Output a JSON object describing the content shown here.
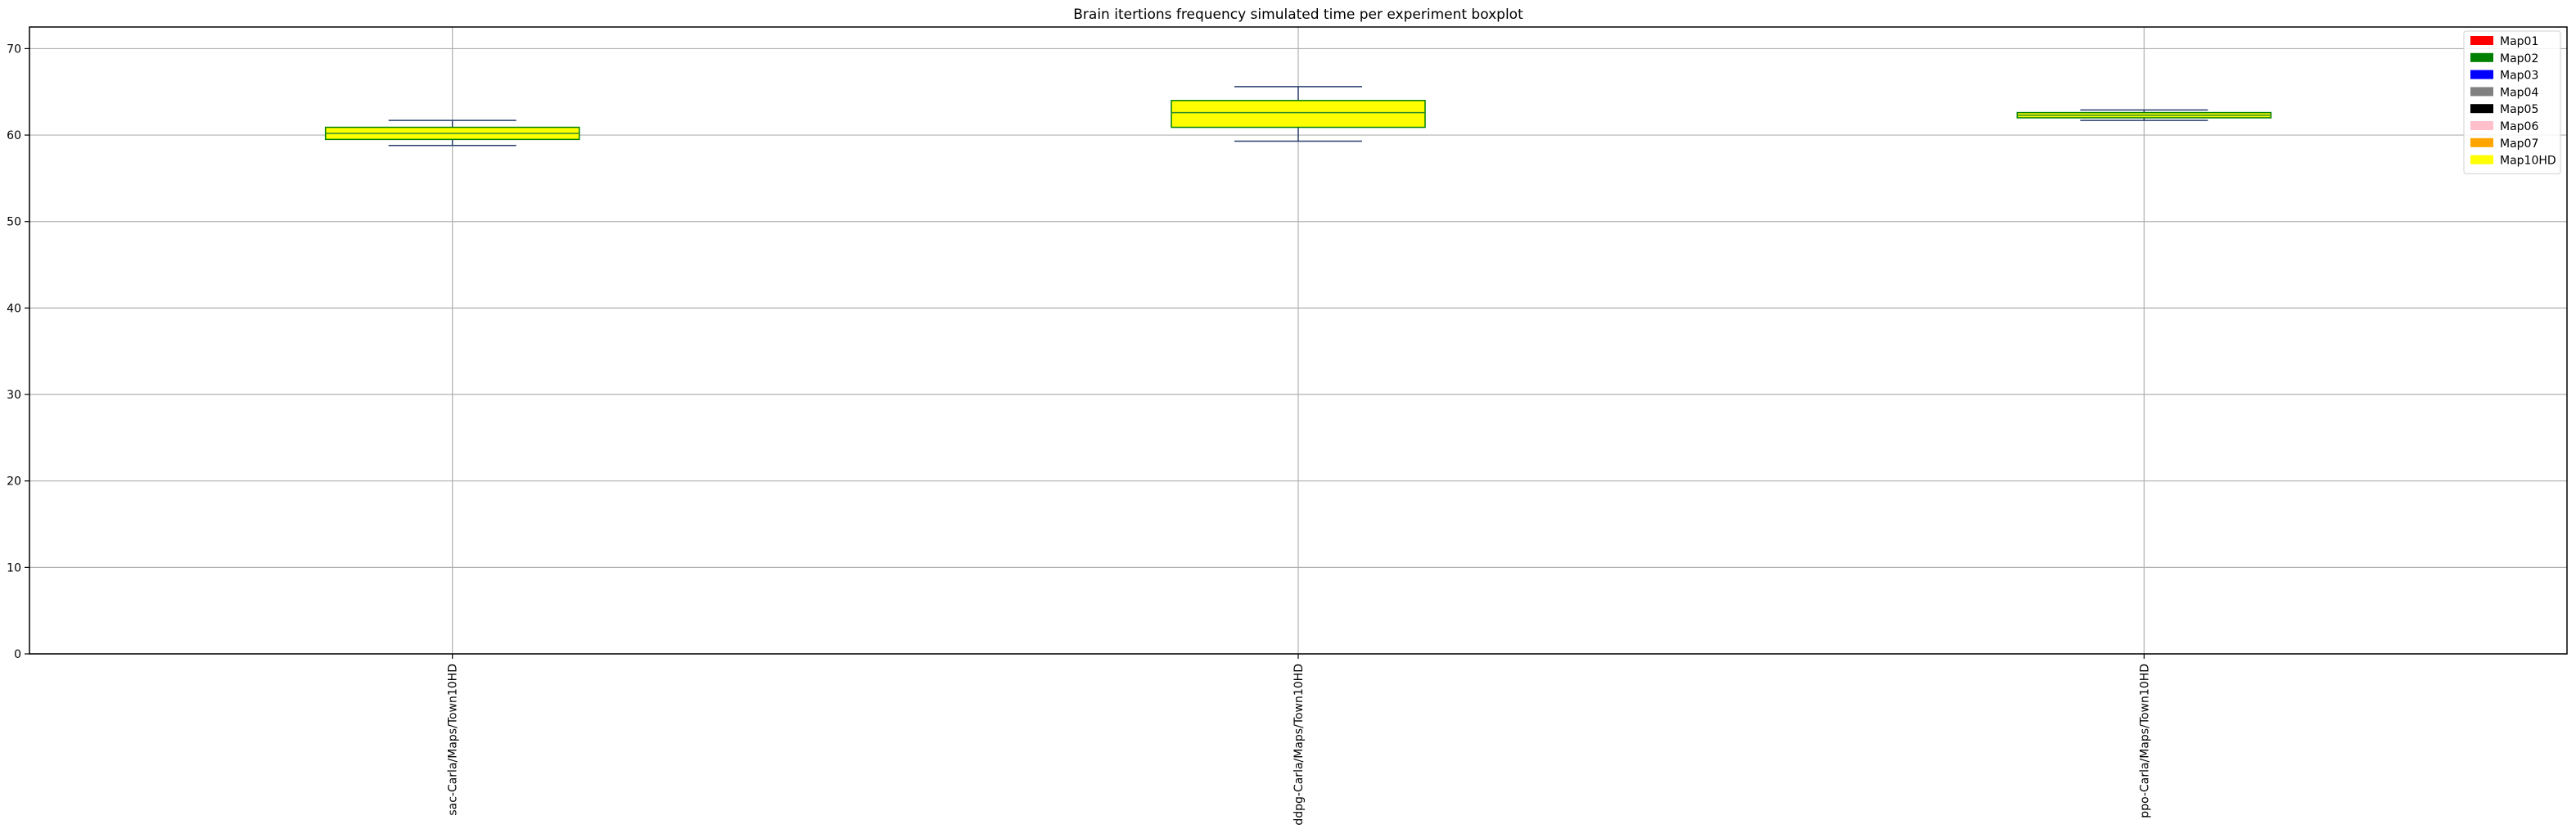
{
  "chart_data": {
    "type": "boxplot",
    "title": "Brain itertions frequency simulated time per experiment boxplot",
    "xlabel": "",
    "ylabel": "",
    "ylim": [
      0,
      72.5
    ],
    "yticks": [
      0,
      10,
      20,
      30,
      40,
      50,
      60,
      70
    ],
    "grid": true,
    "legend_position": "top-right",
    "categories": [
      "sac-Carla/Maps/Town10HD",
      "ddpg-Carla/Maps/Town10HD",
      "ppo-Carla/Maps/Town10HD"
    ],
    "boxes": [
      {
        "category": "sac-Carla/Maps/Town10HD",
        "whisker_low": 58.8,
        "q1": 59.5,
        "median": 60.2,
        "q3": 60.9,
        "whisker_high": 61.7,
        "fill": "#ffff00",
        "outline": "#008000"
      },
      {
        "category": "ddpg-Carla/Maps/Town10HD",
        "whisker_low": 59.3,
        "q1": 60.9,
        "median": 62.6,
        "q3": 64.0,
        "whisker_high": 65.6,
        "fill": "#ffff00",
        "outline": "#008000"
      },
      {
        "category": "ppo-Carla/Maps/Town10HD",
        "whisker_low": 61.7,
        "q1": 62.0,
        "median": 62.3,
        "q3": 62.6,
        "whisker_high": 62.9,
        "fill": "#ffff00",
        "outline": "#008000"
      }
    ],
    "legend": [
      {
        "label": "Map01",
        "color": "#ff0000"
      },
      {
        "label": "Map02",
        "color": "#008000"
      },
      {
        "label": "Map03",
        "color": "#0000ff"
      },
      {
        "label": "Map04",
        "color": "#808080"
      },
      {
        "label": "Map05",
        "color": "#000000"
      },
      {
        "label": "Map06",
        "color": "#ffc0cb"
      },
      {
        "label": "Map07",
        "color": "#ffa500"
      },
      {
        "label": "Map10HD",
        "color": "#ffff00"
      }
    ]
  }
}
